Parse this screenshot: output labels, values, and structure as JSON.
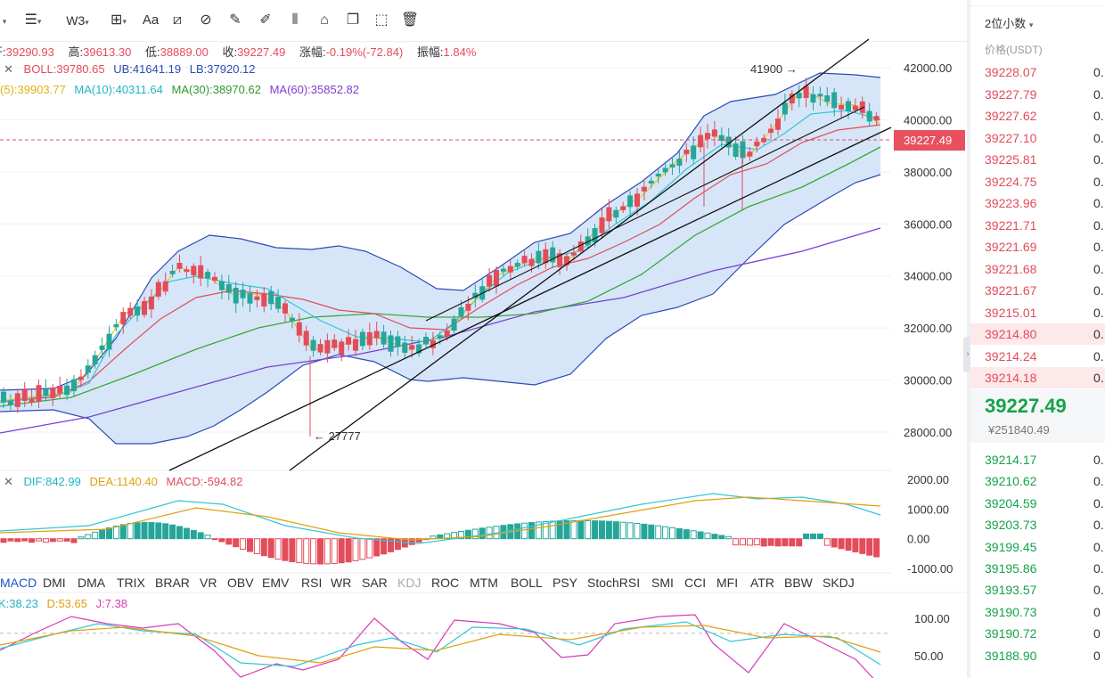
{
  "toolbar": {
    "icons": [
      "list-icon",
      "indent-icon",
      "wave-icon",
      "crosshair-icon",
      "text-icon",
      "ruler-icon",
      "link-icon",
      "pen-icon",
      "brush-icon",
      "bars-icon",
      "lock-icon",
      "copy-icon",
      "screenshot-icon",
      "trash-icon"
    ],
    "text_icon_label": "Aa",
    "wave_label": "W3"
  },
  "ohlc": {
    "open_label": "开:",
    "open": "39290.93",
    "high_label": "高:",
    "high": "39613.30",
    "low_label": "低:",
    "low": "38889.00",
    "close_label": "收:",
    "close": "39227.49",
    "change_label": "涨幅:",
    "change": "-0.19%(-72.84)",
    "amplitude_label": "振幅:",
    "amplitude": "1.84%"
  },
  "boll": {
    "label": "BOLL:",
    "value": "39780.65",
    "ub_label": "UB:",
    "ub": "41641.19",
    "lb_label": "LB:",
    "lb": "37920.12"
  },
  "ma": {
    "ma5_partial": "(5):39903.77",
    "ma10": "MA(10):40311.64",
    "ma30": "MA(30):38970.62",
    "ma60": "MA(60):35852.82"
  },
  "annotations": {
    "high_mark": "41900",
    "low_mark": "27777"
  },
  "price_axis": [
    "42000.00",
    "40000.00",
    "38000.00",
    "36000.00",
    "34000.00",
    "32000.00",
    "30000.00",
    "28000.00"
  ],
  "current_price_tag": "39227.49",
  "macd": {
    "dif": "DIF:842.99",
    "dea": "DEA:1140.40",
    "macd": "MACD:-594.82",
    "axis": [
      "2000.00",
      "1000.00",
      "0.00",
      "-1000.00"
    ]
  },
  "indicator_tabs": [
    "MACD",
    "DMI",
    "DMA",
    "TRIX",
    "BRAR",
    "VR",
    "OBV",
    "EMV",
    "RSI",
    "WR",
    "SAR",
    "KDJ",
    "ROC",
    "MTM",
    "BOLL",
    "PSY",
    "StochRSI",
    "SMI",
    "CCI",
    "MFI",
    "ATR",
    "BBW",
    "SKDJ"
  ],
  "kdj": {
    "k": "K:38.23",
    "d": "D:53.65",
    "j": "J:7.38",
    "axis": [
      "100.00",
      "50.00"
    ]
  },
  "orderbook": {
    "precision": "2位小数",
    "header": "价格(USDT)",
    "asks": [
      {
        "price": "39228.07",
        "qty": "0."
      },
      {
        "price": "39227.79",
        "qty": "0."
      },
      {
        "price": "39227.62",
        "qty": "0."
      },
      {
        "price": "39227.10",
        "qty": "0."
      },
      {
        "price": "39225.81",
        "qty": "0."
      },
      {
        "price": "39224.75",
        "qty": "0."
      },
      {
        "price": "39223.96",
        "qty": "0."
      },
      {
        "price": "39221.71",
        "qty": "0."
      },
      {
        "price": "39221.69",
        "qty": "0."
      },
      {
        "price": "39221.68",
        "qty": "0."
      },
      {
        "price": "39221.67",
        "qty": "0."
      },
      {
        "price": "39215.01",
        "qty": "0."
      },
      {
        "price": "39214.80",
        "qty": "0."
      },
      {
        "price": "39214.24",
        "qty": "0."
      },
      {
        "price": "39214.18",
        "qty": "0."
      }
    ],
    "last_price": "39227.49",
    "last_cny": "¥251840.49",
    "bids": [
      {
        "price": "39214.17",
        "qty": "0."
      },
      {
        "price": "39210.62",
        "qty": "0."
      },
      {
        "price": "39204.59",
        "qty": "0."
      },
      {
        "price": "39203.73",
        "qty": "0."
      },
      {
        "price": "39199.45",
        "qty": "0."
      },
      {
        "price": "39195.86",
        "qty": "0."
      },
      {
        "price": "39193.57",
        "qty": "0."
      },
      {
        "price": "39190.73",
        "qty": "0"
      },
      {
        "price": "39190.72",
        "qty": "0"
      },
      {
        "price": "39188.90",
        "qty": "0"
      }
    ]
  },
  "colors": {
    "up": "#26a69a",
    "down": "#e34c5b",
    "boll_fill": "#cfe2f7",
    "boll_line": "#2b4bb5",
    "ma5": "#f0c419",
    "ma10": "#30c7d6",
    "ma30": "#3aa83a",
    "ma60": "#7b3fd1"
  }
}
